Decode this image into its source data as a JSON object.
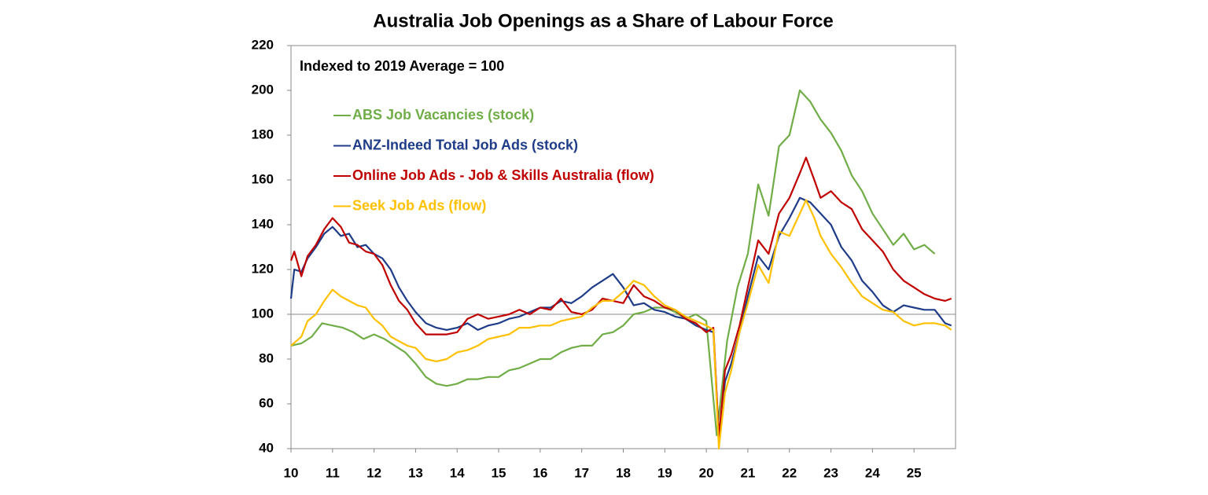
{
  "chart_data": {
    "type": "line",
    "title": "Australia Job Openings as a Share of Labour Force",
    "annotation": "Indexed to 2019 Average = 100",
    "reference_line": 100,
    "xlim": [
      10,
      26
    ],
    "xticks": [
      10,
      11,
      12,
      13,
      14,
      15,
      16,
      17,
      18,
      19,
      20,
      21,
      22,
      23,
      24,
      25
    ],
    "ylim": [
      40,
      220
    ],
    "yticks": [
      40,
      60,
      80,
      100,
      120,
      140,
      160,
      180,
      200,
      220
    ],
    "series": [
      {
        "name": "ABS Job Vacancies (stock)",
        "color": "#70ad47",
        "x": [
          10,
          10.25,
          10.5,
          10.75,
          11,
          11.25,
          11.5,
          11.75,
          12,
          12.25,
          12.5,
          12.75,
          13,
          13.25,
          13.5,
          13.75,
          14,
          14.25,
          14.5,
          14.75,
          15,
          15.25,
          15.5,
          15.75,
          16,
          16.25,
          16.5,
          16.75,
          17,
          17.25,
          17.5,
          17.75,
          18,
          18.25,
          18.5,
          18.75,
          19,
          19.25,
          19.5,
          19.75,
          20,
          20.25,
          20.5,
          20.75,
          21,
          21.25,
          21.5,
          21.75,
          22,
          22.25,
          22.5,
          22.75,
          23,
          23.25,
          23.5,
          23.75,
          24,
          24.25,
          24.5,
          24.75,
          25,
          25.25,
          25.5
        ],
        "values": [
          86,
          87,
          90,
          96,
          95,
          94,
          92,
          89,
          91,
          89,
          86,
          83,
          78,
          72,
          69,
          68,
          69,
          71,
          71,
          72,
          72,
          75,
          76,
          78,
          80,
          80,
          83,
          85,
          86,
          86,
          91,
          92,
          95,
          100,
          101,
          103,
          103,
          101,
          98,
          100,
          97,
          46,
          88,
          112,
          127,
          158,
          144,
          175,
          180,
          200,
          195,
          187,
          181,
          173,
          162,
          155,
          145,
          138,
          131,
          136,
          129,
          131,
          127
        ]
      },
      {
        "name": "ANZ-Indeed Total Job Ads (stock)",
        "color": "#1f3c88",
        "x": [
          10,
          10.08,
          10.25,
          10.4,
          10.6,
          10.8,
          11,
          11.2,
          11.4,
          11.6,
          11.8,
          12,
          12.2,
          12.4,
          12.6,
          12.8,
          13,
          13.25,
          13.5,
          13.75,
          14,
          14.25,
          14.5,
          14.75,
          15,
          15.25,
          15.5,
          15.75,
          16,
          16.25,
          16.5,
          16.75,
          17,
          17.25,
          17.5,
          17.75,
          18,
          18.25,
          18.5,
          18.75,
          19,
          19.25,
          19.5,
          19.75,
          20,
          20.17,
          20.3,
          20.45,
          20.6,
          20.8,
          21,
          21.25,
          21.5,
          21.75,
          22,
          22.25,
          22.5,
          22.75,
          23,
          23.25,
          23.5,
          23.75,
          24,
          24.25,
          24.5,
          24.75,
          25,
          25.25,
          25.5,
          25.75,
          25.9
        ],
        "values": [
          107,
          120,
          119,
          125,
          130,
          136,
          139,
          135,
          136,
          130,
          131,
          127,
          125,
          120,
          112,
          106,
          101,
          96,
          94,
          93,
          94,
          96,
          93,
          95,
          96,
          98,
          99,
          101,
          103,
          103,
          106,
          105,
          108,
          112,
          115,
          118,
          112,
          104,
          105,
          102,
          101,
          99,
          98,
          95,
          93,
          92,
          45,
          70,
          78,
          92,
          108,
          126,
          120,
          135,
          143,
          152,
          150,
          145,
          140,
          130,
          124,
          115,
          110,
          104,
          101,
          104,
          103,
          102,
          102,
          96,
          95
        ]
      },
      {
        "name": "Online Job Ads - Job & Skills Australia (flow)",
        "color": "#c00000",
        "x": [
          10,
          10.08,
          10.25,
          10.4,
          10.6,
          10.8,
          11,
          11.2,
          11.4,
          11.6,
          11.8,
          12,
          12.2,
          12.4,
          12.6,
          12.8,
          13,
          13.25,
          13.5,
          13.75,
          14,
          14.25,
          14.5,
          14.75,
          15,
          15.25,
          15.5,
          15.75,
          16,
          16.25,
          16.5,
          16.75,
          17,
          17.25,
          17.5,
          17.75,
          18,
          18.25,
          18.5,
          18.75,
          19,
          19.25,
          19.5,
          19.75,
          20,
          20.17,
          20.3,
          20.45,
          20.6,
          20.8,
          21,
          21.25,
          21.5,
          21.75,
          22,
          22.25,
          22.4,
          22.6,
          22.75,
          23,
          23.25,
          23.5,
          23.75,
          24,
          24.25,
          24.5,
          24.75,
          25,
          25.25,
          25.5,
          25.75,
          25.9
        ],
        "values": [
          124,
          128,
          117,
          126,
          131,
          138,
          143,
          139,
          132,
          131,
          128,
          127,
          122,
          113,
          106,
          102,
          96,
          91,
          91,
          91,
          92,
          98,
          100,
          98,
          99,
          100,
          102,
          100,
          103,
          102,
          107,
          101,
          100,
          102,
          107,
          106,
          105,
          113,
          108,
          106,
          103,
          102,
          98,
          96,
          92,
          94,
          45,
          75,
          82,
          95,
          112,
          133,
          127,
          145,
          152,
          163,
          170,
          160,
          152,
          155,
          150,
          147,
          138,
          133,
          128,
          120,
          115,
          112,
          109,
          107,
          106,
          107
        ]
      },
      {
        "name": "Seek Job Ads (flow)",
        "color": "#ffc000",
        "x": [
          10,
          10.25,
          10.4,
          10.6,
          10.8,
          11,
          11.2,
          11.4,
          11.6,
          11.8,
          12,
          12.2,
          12.4,
          12.6,
          12.8,
          13,
          13.25,
          13.5,
          13.75,
          14,
          14.25,
          14.5,
          14.75,
          15,
          15.25,
          15.5,
          15.75,
          16,
          16.25,
          16.5,
          16.75,
          17,
          17.25,
          17.5,
          17.75,
          18,
          18.25,
          18.5,
          18.75,
          19,
          19.25,
          19.5,
          19.75,
          20,
          20.17,
          20.3,
          20.45,
          20.6,
          20.8,
          21,
          21.25,
          21.5,
          21.75,
          22,
          22.25,
          22.4,
          22.6,
          22.75,
          23,
          23.25,
          23.5,
          23.75,
          24,
          24.25,
          24.5,
          24.75,
          25,
          25.25,
          25.5,
          25.75,
          25.9
        ],
        "values": [
          86,
          90,
          97,
          100,
          106,
          111,
          108,
          106,
          104,
          103,
          98,
          95,
          90,
          88,
          86,
          85,
          80,
          79,
          80,
          83,
          84,
          86,
          89,
          90,
          91,
          94,
          94,
          95,
          95,
          97,
          98,
          99,
          103,
          106,
          106,
          110,
          115,
          113,
          108,
          104,
          102,
          99,
          97,
          95,
          93,
          40,
          65,
          75,
          92,
          105,
          122,
          114,
          137,
          135,
          145,
          151,
          143,
          135,
          127,
          121,
          114,
          108,
          105,
          102,
          101,
          97,
          95,
          96,
          96,
          95,
          93
        ]
      }
    ]
  }
}
